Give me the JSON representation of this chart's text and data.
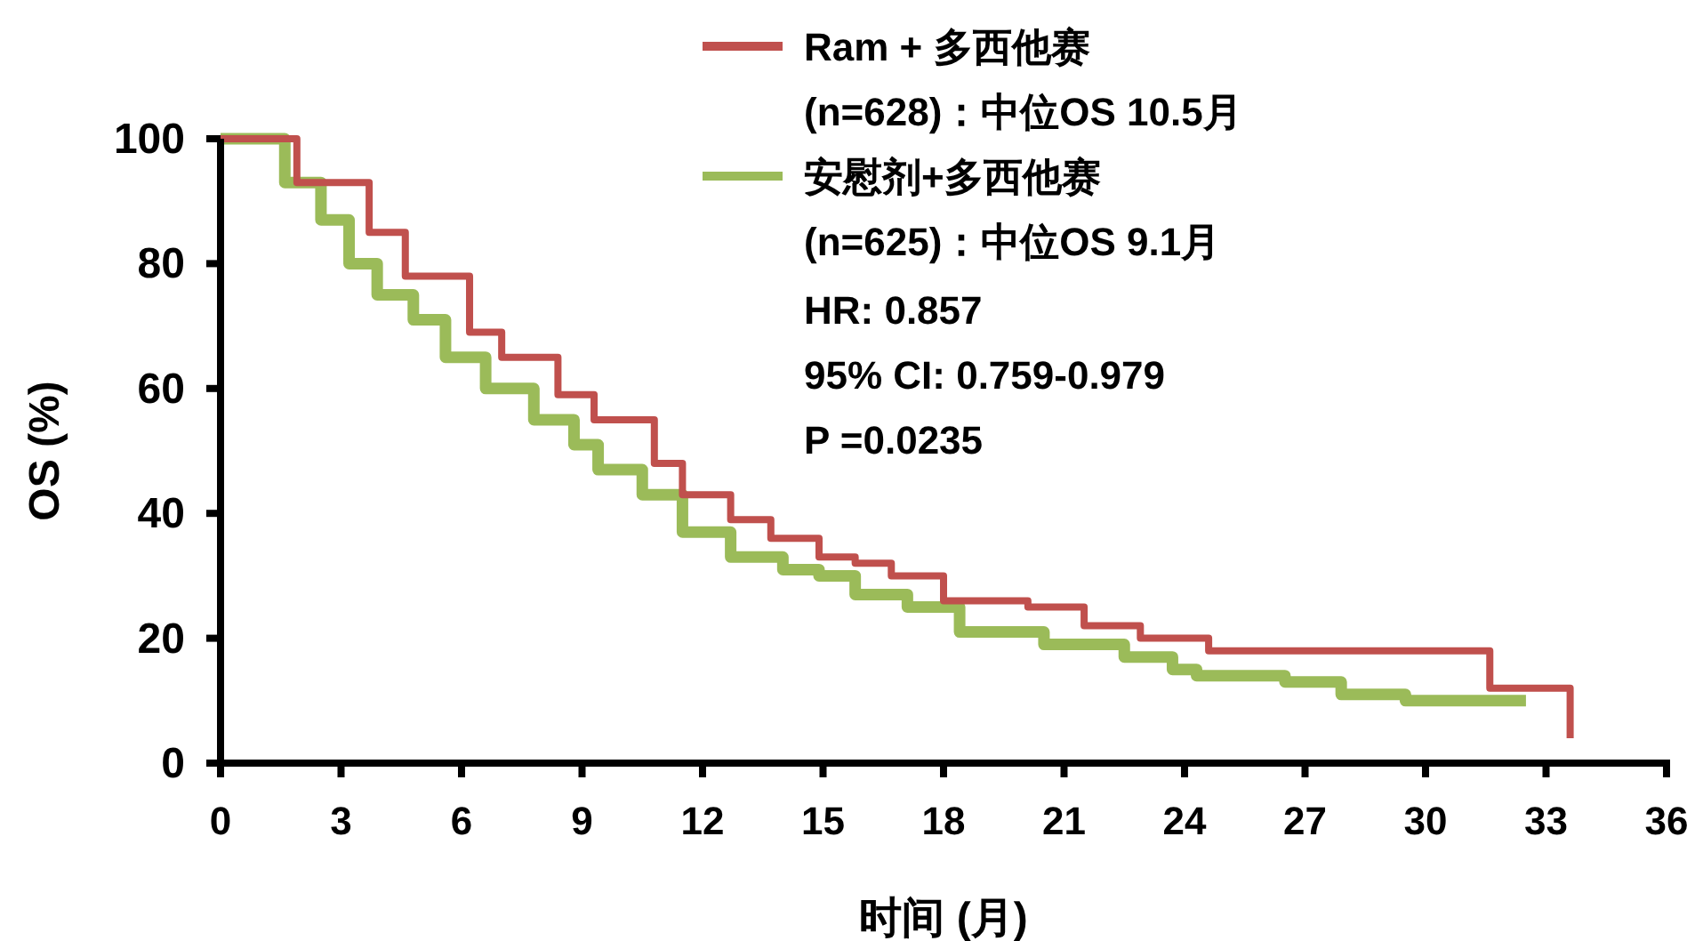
{
  "chart_data": {
    "type": "step",
    "xlabel": "时间 (月)",
    "ylabel": "OS (%)",
    "xlim": [
      0,
      36
    ],
    "xticks": [
      0,
      3,
      6,
      9,
      12,
      15,
      18,
      21,
      24,
      27,
      30,
      33,
      36
    ],
    "ylim": [
      0,
      100
    ],
    "yticks": [
      0,
      20,
      40,
      60,
      80,
      100
    ],
    "grid": false,
    "legend": "top",
    "line_style": "solid",
    "marker": "none",
    "series": [
      {
        "name": "Ram + 多西他赛\n(n=628)：中位OS 10.5月",
        "color": "#c0504d",
        "x": [
          0,
          1.9,
          3.7,
          4.6,
          6.2,
          7.0,
          8.4,
          9.3,
          10.8,
          11.5,
          12.7,
          13.7,
          14.9,
          15.8,
          16.7,
          18,
          20.1,
          21.5,
          22.9,
          24.6,
          31.6,
          33.6
        ],
        "values": [
          100,
          93,
          85,
          78,
          69,
          65,
          59,
          55,
          48,
          43,
          39,
          36,
          33,
          32,
          30,
          26,
          25,
          22,
          20,
          18,
          12,
          4
        ]
      },
      {
        "name": "安慰剂+多西他赛\n(n=625)：中位OS 9.1月",
        "color": "#9bbb59",
        "x": [
          0,
          1.6,
          2.5,
          3.2,
          3.9,
          4.8,
          5.6,
          6.6,
          7.8,
          8.8,
          9.4,
          10.5,
          11.5,
          12.7,
          14,
          14.9,
          15.8,
          17.1,
          18.4,
          20.5,
          22.5,
          23.7,
          24.3,
          26.5,
          27.9,
          29.5,
          32.5
        ],
        "values": [
          100,
          93,
          87,
          80,
          75,
          71,
          65,
          60,
          55,
          51,
          47,
          43,
          37,
          33,
          31,
          30,
          27,
          25,
          21,
          19,
          17,
          15,
          14,
          13,
          11,
          10,
          10
        ]
      }
    ],
    "annotations": [
      "HR: 0.857",
      "95% CI: 0.759-0.979",
      "P =0.0235"
    ]
  }
}
